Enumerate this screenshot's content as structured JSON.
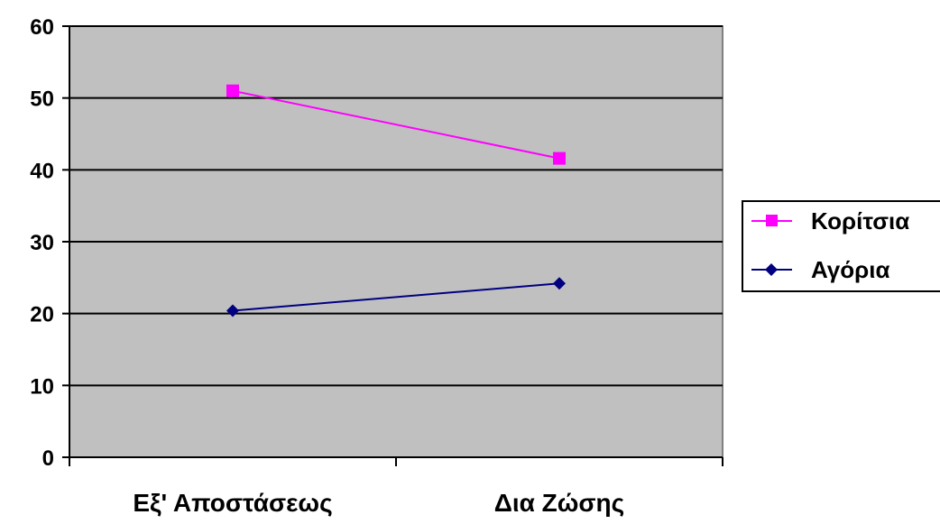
{
  "chart_data": {
    "type": "line",
    "categories": [
      "Εξ' Αποστάσεως",
      "Δια Ζώσης"
    ],
    "series": [
      {
        "name": "Κορίτσια",
        "values": [
          51,
          41.6
        ],
        "color": "#ff00ff",
        "marker": "square"
      },
      {
        "name": "Αγόρια",
        "values": [
          20.4,
          24.2
        ],
        "color": "#000080",
        "marker": "diamond"
      }
    ],
    "ylim": [
      0,
      60
    ],
    "yticks": [
      0,
      10,
      20,
      30,
      40,
      50,
      60
    ],
    "grid": true,
    "plot_background": "#c0c0c0",
    "legend_position": "right"
  }
}
